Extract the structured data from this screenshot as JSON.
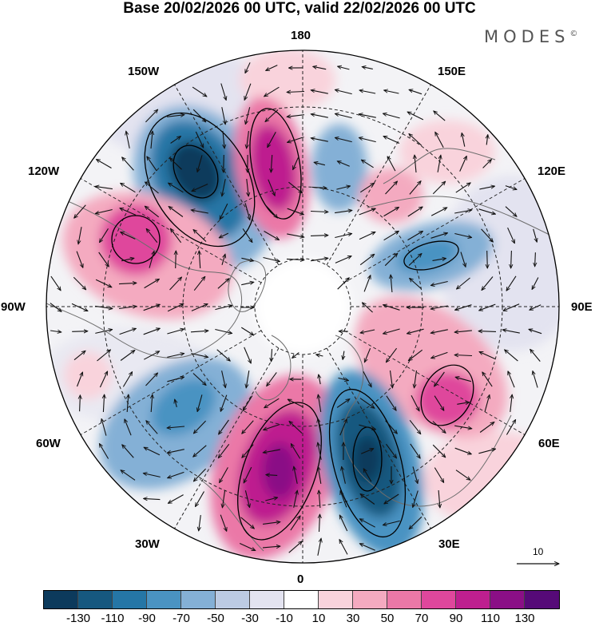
{
  "title": "Base 20/02/2026 00 UTC, valid 22/02/2026 00 UTC",
  "brand": "MODES",
  "brand_mark": "©",
  "longitude_labels": {
    "top": "180",
    "top_left": "150W",
    "top_right": "150E",
    "upper_left": "120W",
    "upper_right": "120E",
    "left": "90W",
    "right": "90E",
    "lower_left": "60W",
    "lower_right": "60E",
    "bottom_left": "30W",
    "bottom_right": "30E",
    "bottom": "0"
  },
  "reference_vector": {
    "label": "10",
    "icon": "arrow-right-icon"
  },
  "colorbar": {
    "labels": [
      "-130",
      "-110",
      "-90",
      "-70",
      "-50",
      "-30",
      "-10",
      "10",
      "30",
      "50",
      "70",
      "90",
      "110",
      "130"
    ],
    "colors": [
      "#0c3a5c",
      "#16587f",
      "#2576a6",
      "#4a93c2",
      "#84b0d6",
      "#bccbe3",
      "#e3e3f0",
      "#ffffff",
      "#f9d3dc",
      "#f4aac0",
      "#eb78a7",
      "#df479c",
      "#be1f8f",
      "#8a0f86",
      "#560a78"
    ]
  },
  "colors": {
    "land": "#6d6d6d",
    "grid": "#222222",
    "background": "#f3f3f6"
  }
}
